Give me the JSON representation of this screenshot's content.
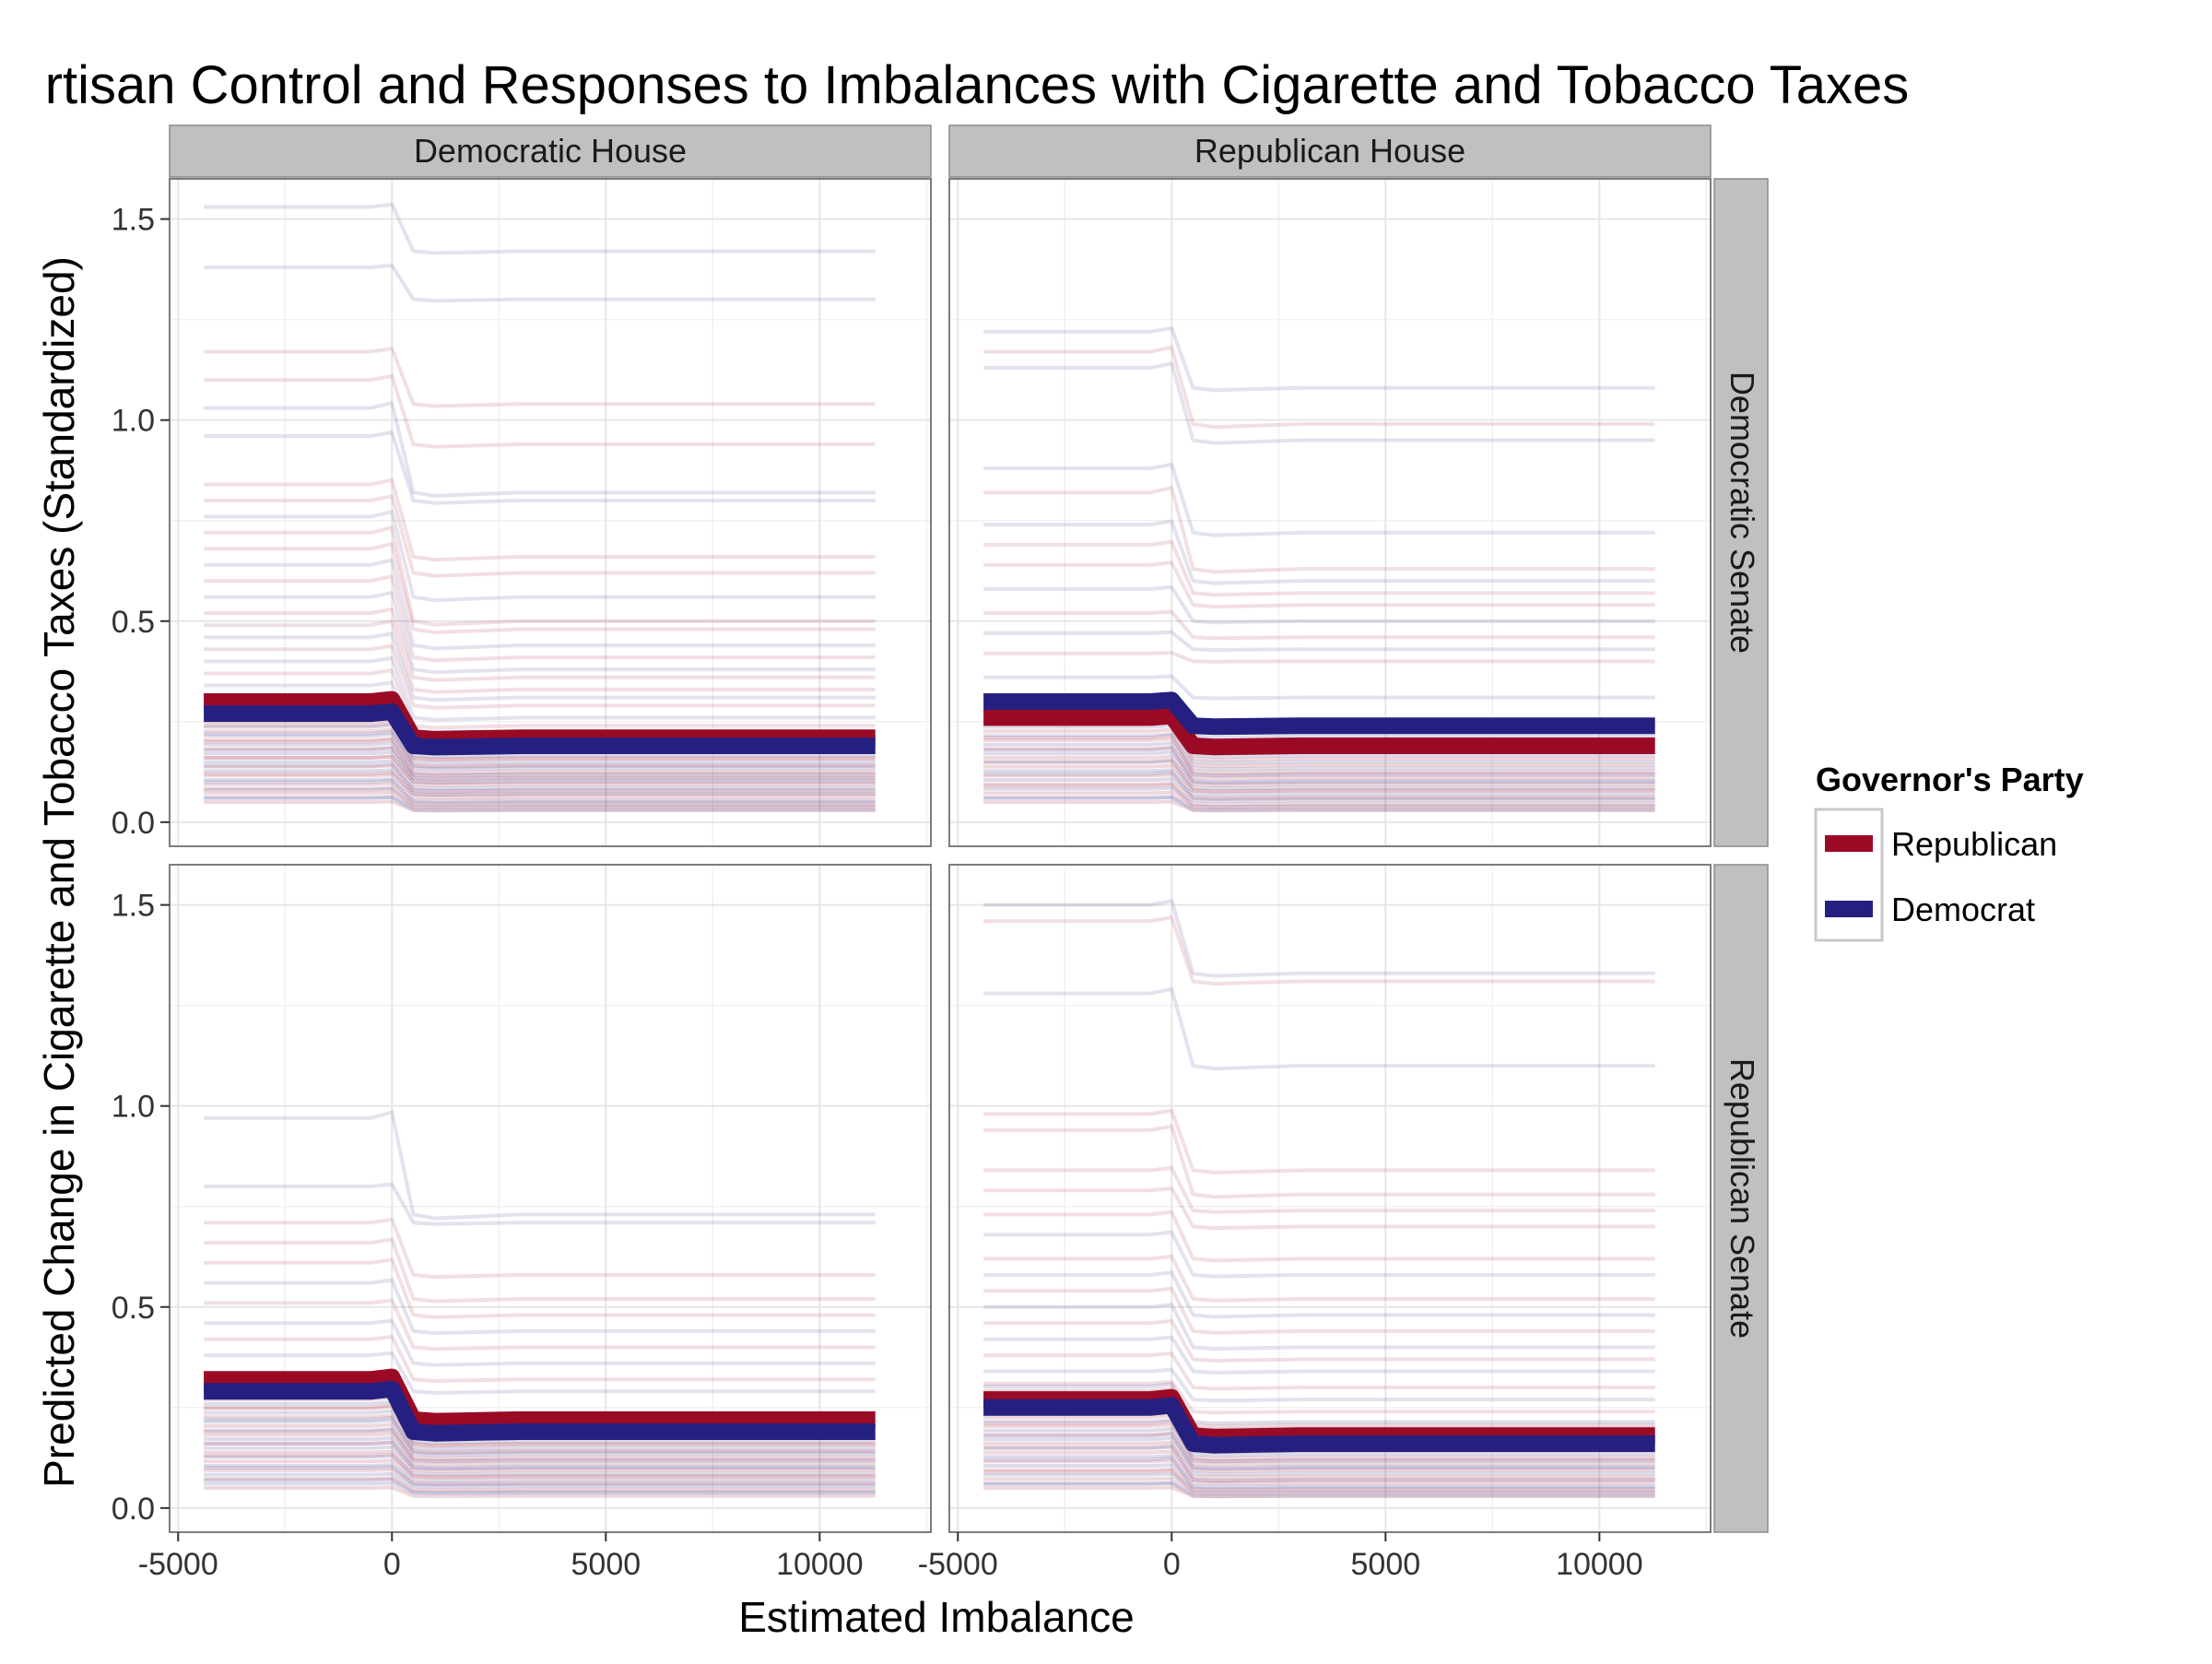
{
  "chart_data": {
    "type": "line",
    "title": "rtisan Control and Responses to Imbalances with Cigarette and Tobacco Taxes",
    "xlabel": "Estimated Imbalance",
    "ylabel": "Predicted Change in Cigarette and Tobacco Taxes (Standardized)",
    "xlim": [
      -5200,
      12600
    ],
    "ylim": [
      -0.06,
      1.6
    ],
    "x_ticks": [
      -5000,
      0,
      5000,
      10000
    ],
    "x_tick_labels": [
      "-5000",
      "0",
      "5000",
      "10000"
    ],
    "y_ticks": [
      0.0,
      0.5,
      1.0,
      1.5
    ],
    "y_tick_labels": [
      "0.0",
      "0.5",
      "1.0",
      "1.5"
    ],
    "grid": true,
    "legend": {
      "title": "Governor's Party",
      "placement": "right",
      "entries": [
        {
          "label": "Republican",
          "color": "#9b0a25"
        },
        {
          "label": "Democrat",
          "color": "#25207f"
        }
      ]
    },
    "column_strips": [
      "Democratic House",
      "Republican House"
    ],
    "row_strips": [
      "Democratic Senate",
      "Republican Senate"
    ],
    "colors": {
      "Republican": "#9b0a25",
      "Democrat": "#25207f",
      "strip": "#c0c0c0",
      "grid": "#e6e6e6"
    },
    "x_curve": [
      -4400,
      -500,
      0,
      500,
      1000,
      2000,
      3000,
      5000,
      7500,
      11300
    ],
    "panels": [
      {
        "col": "Democratic House",
        "row": "Democratic Senate",
        "highlight": [
          {
            "name": "Republican",
            "start": 0.3,
            "end": 0.21
          },
          {
            "name": "Democrat",
            "start": 0.27,
            "end": 0.19
          }
        ],
        "faint_lines": [
          {
            "party": "Democrat",
            "start": 1.53,
            "end": 1.42
          },
          {
            "party": "Democrat",
            "start": 1.38,
            "end": 1.3
          },
          {
            "party": "Republican",
            "start": 1.17,
            "end": 1.04
          },
          {
            "party": "Republican",
            "start": 1.1,
            "end": 0.94
          },
          {
            "party": "Democrat",
            "start": 1.03,
            "end": 0.82
          },
          {
            "party": "Democrat",
            "start": 0.96,
            "end": 0.8
          },
          {
            "party": "Republican",
            "start": 0.84,
            "end": 0.66
          },
          {
            "party": "Republican",
            "start": 0.8,
            "end": 0.62
          },
          {
            "party": "Democrat",
            "start": 0.76,
            "end": 0.56
          },
          {
            "party": "Republican",
            "start": 0.72,
            "end": 0.5
          },
          {
            "party": "Republican",
            "start": 0.68,
            "end": 0.48
          },
          {
            "party": "Democrat",
            "start": 0.64,
            "end": 0.44
          },
          {
            "party": "Republican",
            "start": 0.6,
            "end": 0.41
          },
          {
            "party": "Democrat",
            "start": 0.56,
            "end": 0.38
          },
          {
            "party": "Republican",
            "start": 0.52,
            "end": 0.36
          },
          {
            "party": "Republican",
            "start": 0.49,
            "end": 0.33
          },
          {
            "party": "Democrat",
            "start": 0.46,
            "end": 0.31
          },
          {
            "party": "Republican",
            "start": 0.43,
            "end": 0.29
          },
          {
            "party": "Democrat",
            "start": 0.4,
            "end": 0.26
          },
          {
            "party": "Republican",
            "start": 0.37,
            "end": 0.24
          },
          {
            "party": "Democrat",
            "start": 0.34,
            "end": 0.22
          },
          {
            "party": "Republican",
            "start": 0.24,
            "end": 0.16
          },
          {
            "party": "Democrat",
            "start": 0.22,
            "end": 0.14
          },
          {
            "party": "Republican",
            "start": 0.2,
            "end": 0.12
          },
          {
            "party": "Democrat",
            "start": 0.18,
            "end": 0.11
          },
          {
            "party": "Republican",
            "start": 0.16,
            "end": 0.1
          },
          {
            "party": "Democrat",
            "start": 0.14,
            "end": 0.08
          },
          {
            "party": "Republican",
            "start": 0.12,
            "end": 0.07
          },
          {
            "party": "Democrat",
            "start": 0.1,
            "end": 0.05
          },
          {
            "party": "Republican",
            "start": 0.08,
            "end": 0.04
          },
          {
            "party": "Democrat",
            "start": 0.06,
            "end": 0.03
          }
        ]
      },
      {
        "col": "Republican House",
        "row": "Democratic Senate",
        "highlight": [
          {
            "name": "Republican",
            "start": 0.26,
            "end": 0.19
          },
          {
            "name": "Democrat",
            "start": 0.3,
            "end": 0.24
          }
        ],
        "faint_lines": [
          {
            "party": "Democrat",
            "start": 1.22,
            "end": 1.08
          },
          {
            "party": "Republican",
            "start": 1.17,
            "end": 0.99
          },
          {
            "party": "Democrat",
            "start": 1.13,
            "end": 0.95
          },
          {
            "party": "Democrat",
            "start": 0.88,
            "end": 0.72
          },
          {
            "party": "Republican",
            "start": 0.82,
            "end": 0.63
          },
          {
            "party": "Democrat",
            "start": 0.74,
            "end": 0.6
          },
          {
            "party": "Republican",
            "start": 0.69,
            "end": 0.57
          },
          {
            "party": "Republican",
            "start": 0.64,
            "end": 0.54
          },
          {
            "party": "Democrat",
            "start": 0.58,
            "end": 0.5
          },
          {
            "party": "Republican",
            "start": 0.52,
            "end": 0.46
          },
          {
            "party": "Democrat",
            "start": 0.47,
            "end": 0.43
          },
          {
            "party": "Republican",
            "start": 0.42,
            "end": 0.4
          },
          {
            "party": "Democrat",
            "start": 0.36,
            "end": 0.31
          },
          {
            "party": "Republican",
            "start": 0.21,
            "end": 0.12
          },
          {
            "party": "Democrat",
            "start": 0.18,
            "end": 0.1
          },
          {
            "party": "Republican",
            "start": 0.15,
            "end": 0.08
          },
          {
            "party": "Democrat",
            "start": 0.12,
            "end": 0.06
          },
          {
            "party": "Republican",
            "start": 0.09,
            "end": 0.04
          },
          {
            "party": "Democrat",
            "start": 0.06,
            "end": 0.03
          }
        ]
      },
      {
        "col": "Democratic House",
        "row": "Republican Senate",
        "highlight": [
          {
            "name": "Republican",
            "start": 0.32,
            "end": 0.22
          },
          {
            "name": "Democrat",
            "start": 0.29,
            "end": 0.19
          }
        ],
        "faint_lines": [
          {
            "party": "Democrat",
            "start": 0.97,
            "end": 0.73
          },
          {
            "party": "Democrat",
            "start": 0.8,
            "end": 0.71
          },
          {
            "party": "Republican",
            "start": 0.71,
            "end": 0.58
          },
          {
            "party": "Republican",
            "start": 0.66,
            "end": 0.52
          },
          {
            "party": "Republican",
            "start": 0.61,
            "end": 0.48
          },
          {
            "party": "Democrat",
            "start": 0.56,
            "end": 0.44
          },
          {
            "party": "Republican",
            "start": 0.51,
            "end": 0.4
          },
          {
            "party": "Democrat",
            "start": 0.46,
            "end": 0.36
          },
          {
            "party": "Republican",
            "start": 0.42,
            "end": 0.32
          },
          {
            "party": "Democrat",
            "start": 0.38,
            "end": 0.29
          },
          {
            "party": "Republican",
            "start": 0.25,
            "end": 0.16
          },
          {
            "party": "Democrat",
            "start": 0.22,
            "end": 0.14
          },
          {
            "party": "Republican",
            "start": 0.19,
            "end": 0.12
          },
          {
            "party": "Democrat",
            "start": 0.16,
            "end": 0.1
          },
          {
            "party": "Republican",
            "start": 0.13,
            "end": 0.08
          },
          {
            "party": "Democrat",
            "start": 0.1,
            "end": 0.06
          },
          {
            "party": "Democrat",
            "start": 0.07,
            "end": 0.04
          }
        ]
      },
      {
        "col": "Republican House",
        "row": "Republican Senate",
        "highlight": [
          {
            "name": "Republican",
            "start": 0.27,
            "end": 0.18
          },
          {
            "name": "Democrat",
            "start": 0.25,
            "end": 0.16
          }
        ],
        "faint_lines": [
          {
            "party": "Democrat",
            "start": 1.5,
            "end": 1.33
          },
          {
            "party": "Republican",
            "start": 1.46,
            "end": 1.31
          },
          {
            "party": "Democrat",
            "start": 1.28,
            "end": 1.1
          },
          {
            "party": "Republican",
            "start": 0.98,
            "end": 0.84
          },
          {
            "party": "Republican",
            "start": 0.94,
            "end": 0.78
          },
          {
            "party": "Republican",
            "start": 0.84,
            "end": 0.74
          },
          {
            "party": "Republican",
            "start": 0.79,
            "end": 0.7
          },
          {
            "party": "Republican",
            "start": 0.73,
            "end": 0.62
          },
          {
            "party": "Democrat",
            "start": 0.68,
            "end": 0.58
          },
          {
            "party": "Republican",
            "start": 0.62,
            "end": 0.52
          },
          {
            "party": "Democrat",
            "start": 0.58,
            "end": 0.48
          },
          {
            "party": "Republican",
            "start": 0.54,
            "end": 0.44
          },
          {
            "party": "Democrat",
            "start": 0.5,
            "end": 0.4
          },
          {
            "party": "Republican",
            "start": 0.46,
            "end": 0.37
          },
          {
            "party": "Democrat",
            "start": 0.42,
            "end": 0.34
          },
          {
            "party": "Republican",
            "start": 0.38,
            "end": 0.3
          },
          {
            "party": "Democrat",
            "start": 0.34,
            "end": 0.27
          },
          {
            "party": "Republican",
            "start": 0.31,
            "end": 0.24
          },
          {
            "party": "Republican",
            "start": 0.21,
            "end": 0.12
          },
          {
            "party": "Democrat",
            "start": 0.18,
            "end": 0.1
          },
          {
            "party": "Republican",
            "start": 0.15,
            "end": 0.07
          },
          {
            "party": "Democrat",
            "start": 0.12,
            "end": 0.05
          },
          {
            "party": "Republican",
            "start": 0.09,
            "end": 0.04
          },
          {
            "party": "Democrat",
            "start": 0.06,
            "end": 0.03
          }
        ]
      }
    ]
  }
}
